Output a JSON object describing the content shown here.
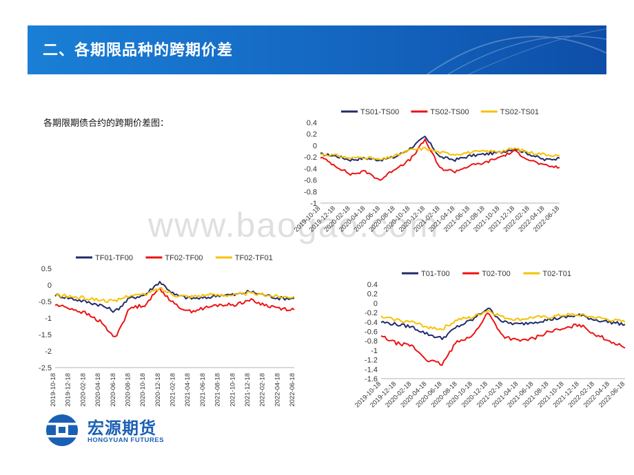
{
  "header": {
    "title": "二、各期限品种的跨期价差"
  },
  "intro_text": "各期限期债合约的跨期价差图：",
  "watermark": "www.baogao.com",
  "logo": {
    "name": "宏源期货",
    "sub": "HONGYUAN FUTURES"
  },
  "colors": {
    "navy": "#1f2a6b",
    "red": "#ee1111",
    "yellow": "#f6c100",
    "banner": "#1466c0"
  },
  "chart_data": [
    {
      "type": "line",
      "id": "ts",
      "x": [
        "2019-10-18",
        "2019-12-18",
        "2020-02-18",
        "2020-04-18",
        "2020-06-18",
        "2020-08-18",
        "2020-10-18",
        "2020-12-18",
        "2021-02-18",
        "2021-04-18",
        "2021-06-18",
        "2021-08-18",
        "2021-10-18",
        "2021-12-18",
        "2022-02-18",
        "2022-04-18",
        "2022-06-18"
      ],
      "ylim": [
        -1,
        0.4
      ],
      "yticks": [
        "0.4",
        "0.2",
        "0",
        "-0.2",
        "-0.4",
        "-0.6",
        "-0.8",
        "-1"
      ],
      "series": [
        {
          "name": "TS01-TS00",
          "color": "#1f2a6b",
          "values": [
            -0.15,
            -0.18,
            -0.25,
            -0.22,
            -0.25,
            -0.2,
            -0.05,
            0.15,
            -0.2,
            -0.25,
            -0.18,
            -0.15,
            -0.12,
            -0.05,
            -0.15,
            -0.25,
            -0.22
          ]
        },
        {
          "name": "TS02-TS00",
          "color": "#ee1111",
          "values": [
            -0.2,
            -0.35,
            -0.5,
            -0.45,
            -0.6,
            -0.4,
            -0.25,
            0.1,
            -0.4,
            -0.45,
            -0.35,
            -0.3,
            -0.2,
            -0.1,
            -0.25,
            -0.35,
            -0.38
          ]
        },
        {
          "name": "TS02-TS01",
          "color": "#f6c100",
          "values": [
            -0.15,
            -0.17,
            -0.22,
            -0.2,
            -0.25,
            -0.18,
            -0.08,
            -0.05,
            -0.12,
            -0.15,
            -0.12,
            -0.1,
            -0.1,
            -0.05,
            -0.12,
            -0.15,
            -0.18
          ]
        }
      ]
    },
    {
      "type": "line",
      "id": "tf",
      "x": [
        "2019-10-18",
        "2019-12-18",
        "2020-02-18",
        "2020-04-18",
        "2020-06-18",
        "2020-08-18",
        "2020-10-18",
        "2020-12-18",
        "2021-02-18",
        "2021-04-18",
        "2021-06-18",
        "2021-08-18",
        "2021-10-18",
        "2021-12-18",
        "2022-02-18",
        "2022-04-18",
        "2022-06-18"
      ],
      "ylim": [
        -2.5,
        0.5
      ],
      "yticks": [
        "0.5",
        "0",
        "-0.5",
        "-1",
        "-1.5",
        "-2",
        "-2.5"
      ],
      "series": [
        {
          "name": "TF01-TF00",
          "color": "#1f2a6b",
          "values": [
            -0.3,
            -0.4,
            -0.5,
            -0.6,
            -0.8,
            -0.4,
            -0.3,
            0.1,
            -0.3,
            -0.4,
            -0.4,
            -0.3,
            -0.3,
            -0.2,
            -0.3,
            -0.4,
            -0.4
          ]
        },
        {
          "name": "TF02-TF00",
          "color": "#ee1111",
          "values": [
            -0.6,
            -0.7,
            -0.85,
            -1.1,
            -1.6,
            -0.7,
            -0.6,
            -0.1,
            -0.6,
            -0.8,
            -0.7,
            -0.6,
            -0.6,
            -0.45,
            -0.6,
            -0.7,
            -0.75
          ]
        },
        {
          "name": "TF02-TF01",
          "color": "#f6c100",
          "values": [
            -0.3,
            -0.35,
            -0.4,
            -0.45,
            -0.5,
            -0.3,
            -0.3,
            -0.1,
            -0.3,
            -0.35,
            -0.3,
            -0.3,
            -0.3,
            -0.25,
            -0.3,
            -0.35,
            -0.35
          ]
        }
      ]
    },
    {
      "type": "line",
      "id": "t",
      "x": [
        "2019-10-18",
        "2019-12-18",
        "2020-02-18",
        "2020-04-18",
        "2020-06-18",
        "2020-08-18",
        "2020-10-18",
        "2020-12-18",
        "2021-02-18",
        "2021-04-18",
        "2021-06-18",
        "2021-08-18",
        "2021-10-18",
        "2021-12-18",
        "2022-02-18",
        "2022-04-18",
        "2022-06-18"
      ],
      "ylim": [
        -1.6,
        0.4
      ],
      "yticks": [
        "0.4",
        "0.2",
        "0",
        "-0.2",
        "-0.4",
        "-0.6",
        "-0.8",
        "-1",
        "-1.2",
        "-1.4",
        "-1.6"
      ],
      "series": [
        {
          "name": "T01-T00",
          "color": "#1f2a6b",
          "values": [
            -0.4,
            -0.45,
            -0.5,
            -0.65,
            -0.75,
            -0.5,
            -0.35,
            -0.1,
            -0.4,
            -0.45,
            -0.4,
            -0.35,
            -0.3,
            -0.25,
            -0.35,
            -0.4,
            -0.45
          ]
        },
        {
          "name": "T02-T00",
          "color": "#ee1111",
          "values": [
            -0.7,
            -0.85,
            -0.9,
            -1.2,
            -1.3,
            -0.8,
            -0.7,
            -0.2,
            -0.7,
            -0.8,
            -0.75,
            -0.6,
            -0.55,
            -0.45,
            -0.65,
            -0.8,
            -0.95
          ]
        },
        {
          "name": "T02-T01",
          "color": "#f6c100",
          "values": [
            -0.3,
            -0.35,
            -0.4,
            -0.5,
            -0.55,
            -0.35,
            -0.3,
            -0.15,
            -0.3,
            -0.35,
            -0.3,
            -0.3,
            -0.25,
            -0.25,
            -0.3,
            -0.35,
            -0.4
          ]
        }
      ]
    }
  ]
}
